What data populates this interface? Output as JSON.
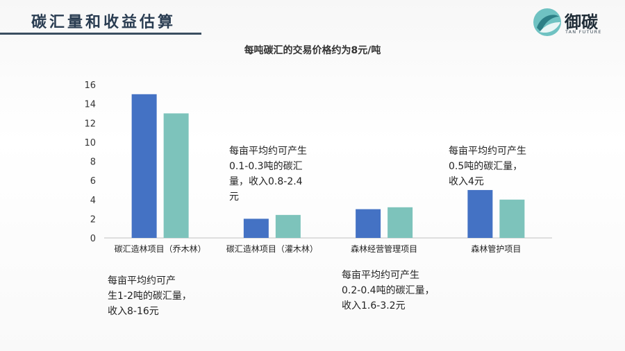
{
  "header": {
    "title": "碳汇量和收益估算",
    "accent_color": "#3a4d60"
  },
  "logo": {
    "name_cn": "御碳",
    "name_en": "TAN FUTURE",
    "mark_colors": [
      "#6fc2c2",
      "#2d7f86"
    ]
  },
  "chart_data": {
    "type": "bar",
    "title": "每吨碳汇的交易价格约为8元/吨",
    "categories": [
      "碳汇造林项目（乔木林）",
      "碳汇造林项目（灌木林）",
      "森林经营管理项目",
      "森林管护项目"
    ],
    "series": [
      {
        "values": [
          15,
          2,
          3,
          5
        ],
        "color": "#4472c4"
      },
      {
        "values": [
          13,
          2.4,
          3.2,
          4
        ],
        "color": "#7dc3bb"
      }
    ],
    "ylim": [
      0,
      16
    ],
    "yticks": [
      "0",
      "2",
      "4",
      "6",
      "8",
      "10",
      "12",
      "14",
      "16"
    ],
    "grid": false,
    "legend": "none",
    "xlabel": "",
    "ylabel": ""
  },
  "annotations": {
    "note_1": [
      "每亩平均约可产",
      "生1-2吨的碳汇量，",
      "收入8-16元"
    ],
    "note_2": [
      "每亩平均约可产生",
      "0.2-0.4吨的碳汇量，",
      "收入1.6-3.2元"
    ],
    "note_3": [
      "每亩平均约可产生",
      "0.1-0.3吨的碳汇",
      "量，收入0.8-2.4",
      "元"
    ],
    "note_4": [
      "每亩平均约可产生",
      "0.5吨的碳汇量，",
      "收入4元"
    ]
  }
}
